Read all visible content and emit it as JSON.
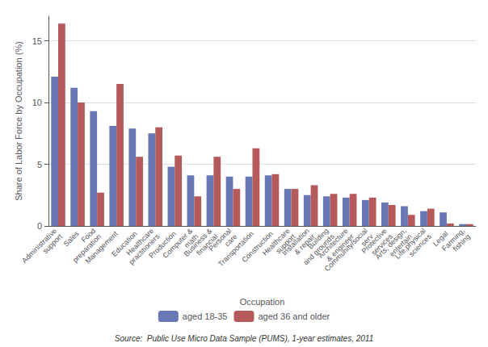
{
  "chart_data": {
    "type": "bar",
    "categories": [
      "Administrative\nsupport",
      "Sales",
      "Food\npreparation",
      "Management",
      "Education",
      "Healthcare\npractitioners",
      "Production",
      "Computer &\nmath",
      "Business &\nfinancial",
      "Personal\ncare",
      "Transportation",
      "Construction",
      "Healthcare\nsupport",
      "Installation\n& repair",
      "Building\nand grounds",
      "Architecture\n& engineer",
      "Community/social\nserv",
      "Protective\nservices",
      "Arts, design,\nentertain",
      "Life,physical\nsciences",
      "Legal",
      "Farming,\nfishing"
    ],
    "series": [
      {
        "name": "aged 18-35",
        "color": "#6878b4",
        "values": [
          12.1,
          11.2,
          9.3,
          8.1,
          7.9,
          7.5,
          4.8,
          4.1,
          4.1,
          4.0,
          4.0,
          4.1,
          3.0,
          2.5,
          2.4,
          2.3,
          2.1,
          1.9,
          1.6,
          1.2,
          1.1,
          0.15
        ]
      },
      {
        "name": "aged 36 and older",
        "color": "#b45a5a",
        "values": [
          16.4,
          10.0,
          2.7,
          11.5,
          5.6,
          8.0,
          5.7,
          2.4,
          5.6,
          3.0,
          6.3,
          4.2,
          3.0,
          3.3,
          2.6,
          2.6,
          2.3,
          1.7,
          0.9,
          1.4,
          0.2,
          0.15
        ]
      }
    ],
    "x_label": "Occupation",
    "y_label": "Share of Labor Force by Occupation (%)",
    "ylim": [
      0,
      17
    ],
    "yticks": [
      0,
      5,
      10,
      15
    ],
    "grid": true,
    "legend": "bottom",
    "annotations": [
      "Source:  Public Use Micro Data Sample (PUMS), 1-year estimates, 2011"
    ]
  }
}
